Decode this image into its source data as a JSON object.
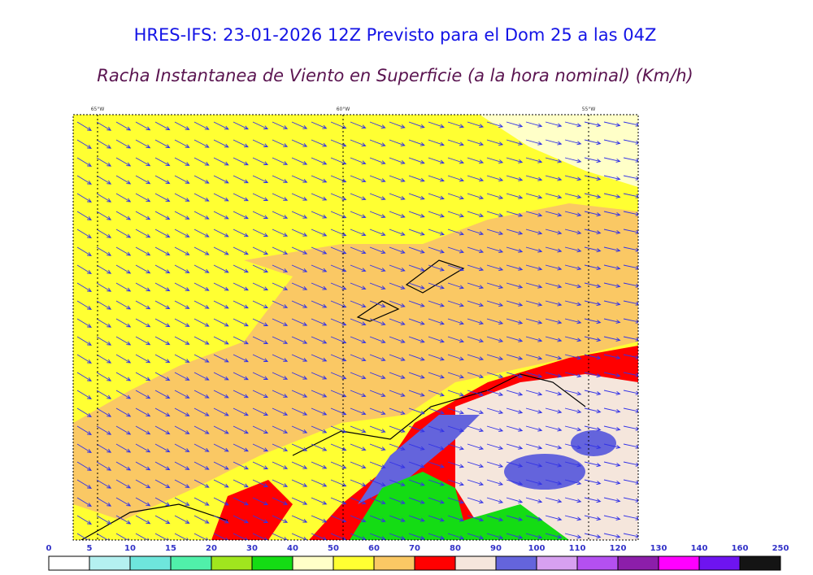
{
  "header": {
    "title": "HRES-IFS: 23-01-2026 12Z Previsto para el Dom 25 a las 04Z",
    "subtitle": "Racha Instantanea de Viento en Superficie (a la hora nominal) (Km/h)"
  },
  "map": {
    "lon_labels": [
      "65°W",
      "60°W",
      "55°W"
    ]
  },
  "colorbar": {
    "labels": [
      0,
      5,
      10,
      15,
      20,
      30,
      40,
      50,
      60,
      70,
      80,
      90,
      100,
      110,
      120,
      130,
      140,
      160,
      250
    ],
    "colors": [
      "#ffffff",
      "#b4f0f0",
      "#6ee6dc",
      "#50f0aa",
      "#a0e61e",
      "#14dc14",
      "#ffffc8",
      "#ffff32",
      "#fac864",
      "#ff0000",
      "#f5e6dc",
      "#6464dc",
      "#d7a0f0",
      "#b450f0",
      "#8c1eaa",
      "#ff00ff",
      "#6e14f0",
      "#141414"
    ]
  }
}
